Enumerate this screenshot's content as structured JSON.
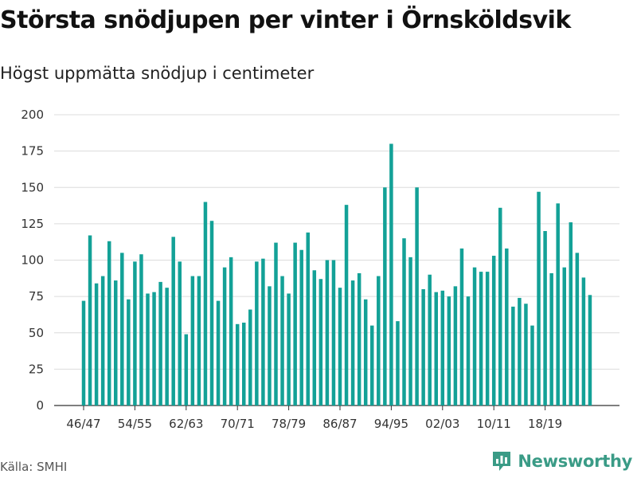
{
  "chart_data": {
    "type": "bar",
    "title": "Största snödjupen per vinter i Örnsköldsvik",
    "subtitle": "Högst uppmätta snödjup i centimeter",
    "xlabel": "",
    "ylabel": "",
    "ylim": [
      0,
      200
    ],
    "yticks": [
      "0",
      "25",
      "50",
      "75",
      "100",
      "125",
      "150",
      "175",
      "200"
    ],
    "xtick_labels": [
      "46/47",
      "54/55",
      "62/63",
      "70/71",
      "78/79",
      "86/87",
      "94/95",
      "02/03",
      "10/11",
      "18/19"
    ],
    "xtick_every": 8,
    "grid": true,
    "color": "#13a197",
    "values": [
      72,
      117,
      84,
      89,
      113,
      86,
      105,
      73,
      99,
      104,
      77,
      78,
      85,
      81,
      116,
      99,
      49,
      89,
      89,
      140,
      127,
      72,
      95,
      102,
      56,
      57,
      66,
      99,
      101,
      82,
      112,
      89,
      77,
      112,
      107,
      119,
      93,
      87,
      100,
      100,
      81,
      138,
      86,
      91,
      73,
      55,
      89,
      150,
      180,
      58,
      115,
      102,
      150,
      80,
      90,
      78,
      79,
      75,
      82,
      108,
      75,
      95,
      92,
      92,
      103,
      136,
      108,
      68,
      74,
      70,
      55,
      147,
      120,
      91,
      139,
      95,
      126,
      105,
      88,
      76
    ]
  },
  "source": "Källa: SMHI",
  "brand": {
    "name": "Newsworthy",
    "color": "#3a9b86"
  }
}
